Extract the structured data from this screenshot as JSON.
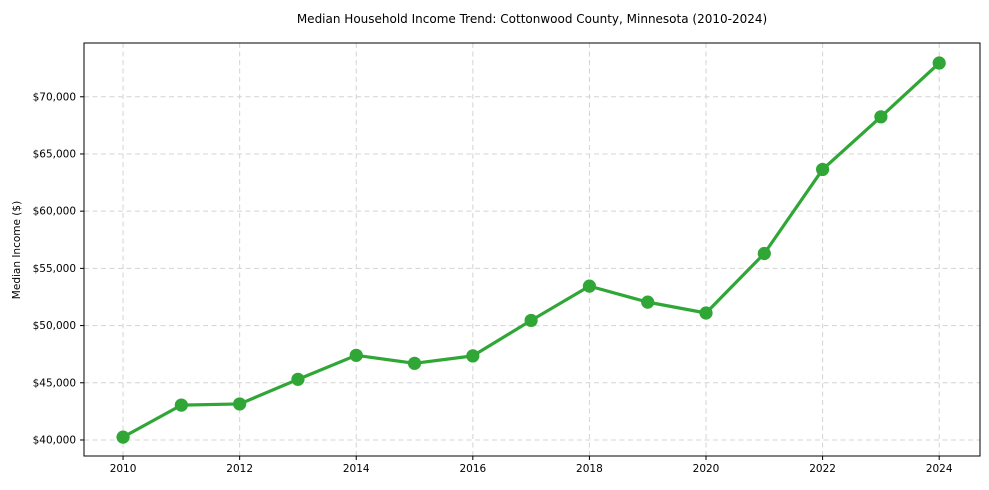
{
  "title": "Median Household Income Trend: Cottonwood County, Minnesota (2010-2024)",
  "chart_data": {
    "type": "line",
    "title": "Median Household Income Trend: Cottonwood County, Minnesota (2010-2024)",
    "xlabel": "",
    "ylabel": "Median Income ($)",
    "x": [
      2010,
      2011,
      2012,
      2013,
      2014,
      2015,
      2016,
      2017,
      2018,
      2019,
      2020,
      2021,
      2022,
      2023,
      2024
    ],
    "series": [
      {
        "name": "Median household income",
        "values": [
          40250,
          43050,
          43150,
          45300,
          47400,
          46700,
          47350,
          50450,
          53450,
          52050,
          51100,
          56300,
          63650,
          68250,
          72950
        ]
      }
    ],
    "xlim": [
      2009.33,
      2024.7
    ],
    "ylim": [
      38600,
      74700
    ],
    "x_ticks": [
      2010,
      2012,
      2014,
      2016,
      2018,
      2020,
      2022,
      2024
    ],
    "x_tick_labels": [
      "2010",
      "2012",
      "2014",
      "2016",
      "2018",
      "2020",
      "2022",
      "2024"
    ],
    "y_ticks": [
      40000,
      45000,
      50000,
      55000,
      60000,
      65000,
      70000
    ],
    "y_tick_labels": [
      "$40,000",
      "$45,000",
      "$50,000",
      "$55,000",
      "$60,000",
      "$65,000",
      "$70,000"
    ],
    "grid": true,
    "grid_style": "dashed",
    "legend": false,
    "colors": {
      "line": "#2fa636",
      "marker": "#2fa636",
      "grid": "#d4d4d4",
      "spine": "#000000",
      "text": "#000000",
      "background": "#ffffff"
    },
    "line_width": 3.2,
    "marker_radius": 6.6
  },
  "layout_note": ""
}
